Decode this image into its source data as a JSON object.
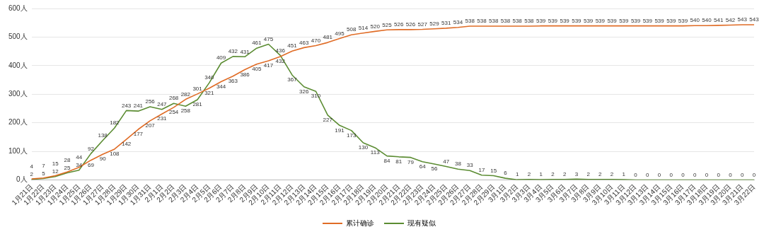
{
  "chart_data": {
    "type": "line",
    "categories": [
      "1月21日",
      "1月22日",
      "1月23日",
      "1月24日",
      "1月25日",
      "1月26日",
      "1月27日",
      "1月28日",
      "1月29日",
      "1月30日",
      "1月31日",
      "2月1日",
      "2月2日",
      "2月3日",
      "2月4日",
      "2月5日",
      "2月6日",
      "2月7日",
      "2月8日",
      "2月9日",
      "2月10日",
      "2月11日",
      "2月12日",
      "2月13日",
      "2月14日",
      "2月15日",
      "2月16日",
      "2月17日",
      "2月18日",
      "2月19日",
      "2月20日",
      "2月21日",
      "2月22日",
      "2月23日",
      "2月24日",
      "2月25日",
      "2月26日",
      "2月27日",
      "2月28日",
      "2月29日",
      "3月1日",
      "3月2日",
      "3月3日",
      "3月4日",
      "3月5日",
      "3月6日",
      "3月7日",
      "3月8日",
      "3月9日",
      "3月10日",
      "3月11日",
      "3月12日",
      "3月13日",
      "3月14日",
      "3月15日",
      "3月16日",
      "3月17日",
      "3月18日",
      "3月19日",
      "3月20日",
      "3月21日",
      "3月22日"
    ],
    "series": [
      {
        "name": "累计确诊",
        "color": "#e06c26",
        "values": [
          4,
          7,
          15,
          28,
          44,
          69,
          90,
          108,
          142,
          177,
          207,
          231,
          254,
          282,
          301,
          321,
          344,
          363,
          386,
          405,
          417,
          432,
          451,
          463,
          470,
          481,
          495,
          508,
          514,
          520,
          525,
          526,
          526,
          527,
          529,
          531,
          534,
          538,
          538,
          538,
          538,
          538,
          538,
          539,
          539,
          539,
          539,
          539,
          539,
          539,
          539,
          539,
          539,
          539,
          539,
          539,
          540,
          540,
          541,
          542,
          543,
          543
        ]
      },
      {
        "name": "现有疑似",
        "color": "#5b8c32",
        "values": [
          2,
          5,
          12,
          25,
          34,
          92,
          138,
          182,
          243,
          241,
          256,
          247,
          268,
          258,
          281,
          340,
          409,
          432,
          431,
          461,
          475,
          436,
          367,
          326,
          310,
          227,
          191,
          173,
          130,
          113,
          84,
          81,
          79,
          64,
          56,
          47,
          38,
          33,
          17,
          15,
          6,
          1,
          2,
          1,
          2,
          2,
          3,
          2,
          2,
          2,
          1,
          0,
          0,
          0,
          0,
          0,
          0,
          0,
          0,
          0,
          0,
          0
        ]
      }
    ],
    "ylim": [
      0,
      600
    ],
    "yticks": [
      {
        "value": 0,
        "label": "0人"
      },
      {
        "value": 100,
        "label": "100人"
      },
      {
        "value": 200,
        "label": "200人"
      },
      {
        "value": 300,
        "label": "300人"
      },
      {
        "value": 400,
        "label": "400人"
      },
      {
        "value": 500,
        "label": "500人"
      },
      {
        "value": 600,
        "label": "600人"
      }
    ],
    "grid": "y",
    "legend": "bottom",
    "data_labels": true,
    "marker": "none",
    "line_style": "solid"
  }
}
